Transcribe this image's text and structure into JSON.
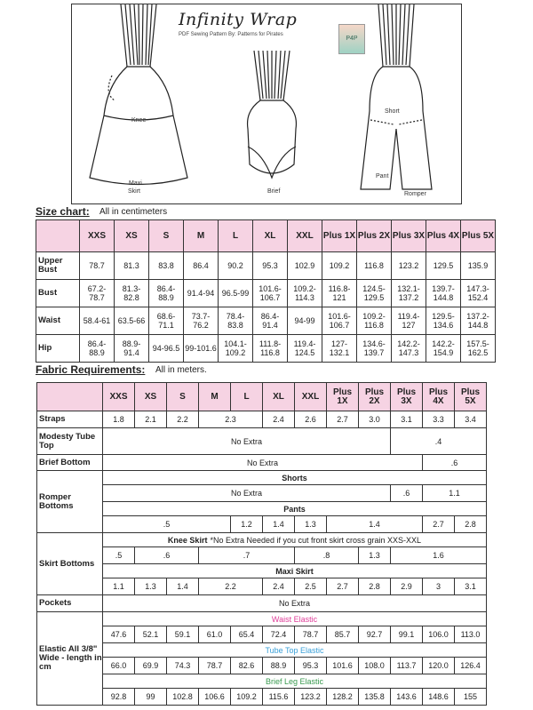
{
  "header": {
    "title": "Infinity Wrap",
    "subtitle": "PDF Sewing Pattern By: Patterns for Pirates",
    "logo_text": "P4P",
    "labels": {
      "knee": "Knee",
      "maxi": "Maxi",
      "skirt": "Skirt",
      "brief": "Brief",
      "short": "Short",
      "pant": "Pant",
      "romper": "Romper"
    }
  },
  "size_chart": {
    "title": "Size chart:",
    "note": "All in centimeters",
    "sizes": [
      "XXS",
      "XS",
      "S",
      "M",
      "L",
      "XL",
      "XXL",
      "Plus 1X",
      "Plus 2X",
      "Plus 3X",
      "Plus 4X",
      "Plus 5X"
    ],
    "rows": [
      {
        "label": "Upper Bust",
        "values": [
          "78.7",
          "81.3",
          "83.8",
          "86.4",
          "90.2",
          "95.3",
          "102.9",
          "109.2",
          "116.8",
          "123.2",
          "129.5",
          "135.9"
        ]
      },
      {
        "label": "Bust",
        "values": [
          "67.2-78.7",
          "81.3-82.8",
          "86.4-88.9",
          "91.4-94",
          "96.5-99",
          "101.6-106.7",
          "109.2-114.3",
          "116.8-121",
          "124.5-129.5",
          "132.1-137.2",
          "139.7-144.8",
          "147.3-152.4"
        ]
      },
      {
        "label": "Waist",
        "values": [
          "58.4-61",
          "63.5-66",
          "68.6-71.1",
          "73.7-76.2",
          "78.4-83.8",
          "86.4-91.4",
          "94-99",
          "101.6-106.7",
          "109.2-116.8",
          "119.4-127",
          "129.5-134.6",
          "137.2-144.8"
        ]
      },
      {
        "label": "Hip",
        "values": [
          "86.4-88.9",
          "88.9-91.4",
          "94-96.5",
          "99-101.6",
          "104.1-109.2",
          "111.8-116.8",
          "119.4-124.5",
          "127-132.1",
          "134.6-139.7",
          "142.2-147.3",
          "142.2-154.9",
          "157.5-162.5"
        ]
      }
    ]
  },
  "fabric": {
    "title": "Fabric Requirements:",
    "note": "All in meters.",
    "colors": {
      "header": "#f6d3e3",
      "waist_elastic": "#e0409a",
      "tube_top_elastic": "#3aa0d8",
      "brief_leg_elastic": "#3a9a50"
    },
    "rows": [
      {
        "label": "Straps",
        "cells": [
          [
            "1.8",
            1
          ],
          [
            "2.1",
            1
          ],
          [
            "2.2",
            1
          ],
          [
            "2.3",
            2
          ],
          [
            "2.4",
            1
          ],
          [
            "2.6",
            1
          ],
          [
            "2.7",
            1
          ],
          [
            "3.0",
            1
          ],
          [
            "3.1",
            1
          ],
          [
            "3.3",
            1
          ],
          [
            "3.4",
            1
          ]
        ]
      },
      {
        "label": "Modesty Tube Top",
        "cells": [
          [
            "No Extra",
            9
          ],
          [
            ".4",
            3
          ]
        ]
      },
      {
        "label": "Brief Bottom",
        "cells": [
          [
            "No Extra",
            10
          ],
          [
            ".6",
            2
          ]
        ]
      },
      {
        "label": "Romper Bottoms",
        "rowspan": 4,
        "sub": "Shorts"
      },
      {
        "cells": [
          [
            "No Extra",
            9
          ],
          [
            ".6",
            1
          ],
          [
            "1.1",
            2
          ]
        ]
      },
      {
        "sub": "Pants"
      },
      {
        "cells": [
          [
            ".5",
            4
          ],
          [
            "1.2",
            1
          ],
          [
            "1.4",
            1
          ],
          [
            "1.3",
            1
          ],
          [
            "1.4",
            3
          ],
          [
            "2.7",
            1
          ],
          [
            "2.8",
            1
          ]
        ]
      },
      {
        "label": "Skirt Bottoms",
        "rowspan": 4,
        "sub": "Knee Skirt",
        "sub_note": "*No Extra Needed if you cut front skirt cross grain XXS-XXL"
      },
      {
        "cells": [
          [
            ".5",
            1
          ],
          [
            ".6",
            2
          ],
          [
            ".7",
            3
          ],
          [
            ".8",
            2
          ],
          [
            "1.3",
            1
          ],
          [
            "1.6",
            3
          ]
        ]
      },
      {
        "sub": "Maxi Skirt"
      },
      {
        "cells": [
          [
            "1.1",
            1
          ],
          [
            "1.3",
            1
          ],
          [
            "1.4",
            1
          ],
          [
            "2.2",
            2
          ],
          [
            "2.4",
            1
          ],
          [
            "2.5",
            1
          ],
          [
            "2.7",
            1
          ],
          [
            "2.8",
            1
          ],
          [
            "2.9",
            1
          ],
          [
            "3",
            1
          ],
          [
            "3.1",
            1
          ]
        ]
      },
      {
        "label": "Pockets",
        "cells": [
          [
            "No Extra",
            12
          ]
        ]
      },
      {
        "label": "Elastic All 3/8\" Wide - length in cm",
        "rowspan": 6,
        "sub": "Waist Elastic",
        "color": "waist_elastic"
      },
      {
        "cells": [
          [
            "47.6",
            1
          ],
          [
            "52.1",
            1
          ],
          [
            "59.1",
            1
          ],
          [
            "61.0",
            1
          ],
          [
            "65.4",
            1
          ],
          [
            "72.4",
            1
          ],
          [
            "78.7",
            1
          ],
          [
            "85.7",
            1
          ],
          [
            "92.7",
            1
          ],
          [
            "99.1",
            1
          ],
          [
            "106.0",
            1
          ],
          [
            "113.0",
            1
          ]
        ]
      },
      {
        "sub": "Tube Top Elastic",
        "color": "tube_top_elastic"
      },
      {
        "cells": [
          [
            "66.0",
            1
          ],
          [
            "69.9",
            1
          ],
          [
            "74.3",
            1
          ],
          [
            "78.7",
            1
          ],
          [
            "82.6",
            1
          ],
          [
            "88.9",
            1
          ],
          [
            "95.3",
            1
          ],
          [
            "101.6",
            1
          ],
          [
            "108.0",
            1
          ],
          [
            "113.7",
            1
          ],
          [
            "120.0",
            1
          ],
          [
            "126.4",
            1
          ]
        ]
      },
      {
        "sub": "Brief Leg Elastic",
        "color": "brief_leg_elastic"
      },
      {
        "cells": [
          [
            "92.8",
            1
          ],
          [
            "99",
            1
          ],
          [
            "102.8",
            1
          ],
          [
            "106.6",
            1
          ],
          [
            "109.2",
            1
          ],
          [
            "115.6",
            1
          ],
          [
            "123.2",
            1
          ],
          [
            "128.2",
            1
          ],
          [
            "135.8",
            1
          ],
          [
            "143.6",
            1
          ],
          [
            "148.6",
            1
          ],
          [
            "155",
            1
          ]
        ]
      }
    ]
  }
}
